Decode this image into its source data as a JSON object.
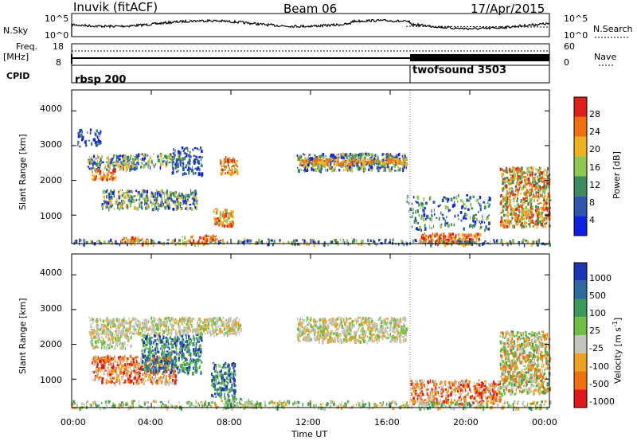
{
  "header": {
    "station": "Inuvik (fitACF)",
    "beam": "Beam 06",
    "date": "17/Apr/2015"
  },
  "noise_panel": {
    "left_label": "N.Sky",
    "right_label": "N.Search",
    "tick_top": "10^5",
    "tick_bottom": "10^0",
    "right_tick_top": "10^5",
    "right_tick_bottom": "10^0"
  },
  "freq_panel": {
    "left_label_1": "Freq.",
    "left_label_2": "[MHz]",
    "tick_top": "18",
    "tick_bottom": "8",
    "right_label": "Nave",
    "right_tick_top": "60",
    "right_tick_bottom": "0"
  },
  "cpid_panel": {
    "label": "CPID",
    "segments": [
      {
        "name": "rbsp 200",
        "start_hour": 0
      },
      {
        "name": "twofsound 3503",
        "start_hour": 17.0
      }
    ]
  },
  "chart_data": [
    {
      "type": "heatmap",
      "name": "power",
      "xlabel": "Time UT",
      "ylabel": "Slant Range [km]",
      "xlim_hours": [
        0,
        24
      ],
      "ylim_km": [
        180,
        4600
      ],
      "x_tick_labels": [
        "00:00",
        "04:00",
        "08:00",
        "12:00",
        "16:00",
        "20:00",
        "00:00"
      ],
      "y_tick_labels": [
        "1000",
        "2000",
        "3000",
        "4000"
      ],
      "colorbar": {
        "label": "Power [dB]",
        "ticks": [
          "4",
          "8",
          "12",
          "16",
          "20",
          "24",
          "28"
        ],
        "colors": [
          "#1020e0",
          "#2e55b0",
          "#3d8a5c",
          "#8fc850",
          "#f0b020",
          "#f07010",
          "#e02018"
        ]
      }
    },
    {
      "type": "heatmap",
      "name": "velocity",
      "xlabel": "Time UT",
      "ylabel": "Slant Range [km]",
      "xlim_hours": [
        0,
        24
      ],
      "ylim_km": [
        180,
        4600
      ],
      "x_tick_labels": [
        "00:00",
        "04:00",
        "08:00",
        "12:00",
        "16:00",
        "20:00",
        "00:00"
      ],
      "y_tick_labels": [
        "1000",
        "2000",
        "3000",
        "4000"
      ],
      "colorbar": {
        "label": "Velocity [m s^-1]",
        "ticks": [
          "1000",
          "500",
          "100",
          "25",
          "-25",
          "-100",
          "-500",
          "-1000"
        ],
        "colors": [
          "#1c34b8",
          "#2d6aa0",
          "#3a9a58",
          "#6cc040",
          "#c4c4bc",
          "#f0a020",
          "#f07010",
          "#e01818"
        ]
      }
    }
  ],
  "x_axis": {
    "title": "Time UT",
    "tick_labels": [
      "00:00",
      "04:00",
      "08:00",
      "12:00",
      "16:00",
      "20:00",
      "00:00"
    ]
  },
  "left_axes": {
    "power_title": "Slant Range [km]",
    "velocity_title": "Slant Range [km]"
  },
  "colorbars": {
    "power_label": "Power [dB]",
    "velocity_label_main": "Velocity [m s",
    "velocity_label_sup": "-1",
    "velocity_label_end": "]"
  }
}
